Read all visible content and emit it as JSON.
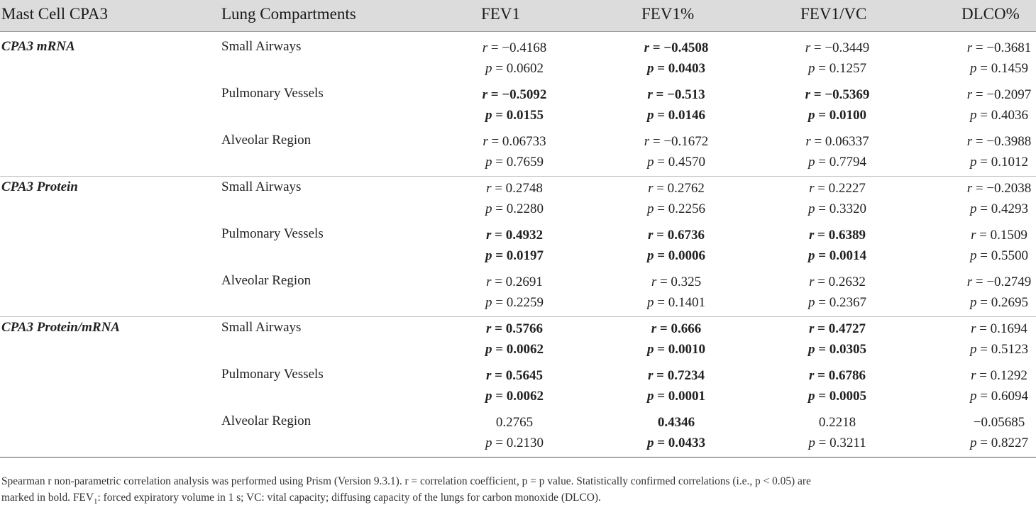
{
  "table": {
    "headers": {
      "mast_cell": "Mast Cell CPA3",
      "compartment": "Lung Compartments",
      "fev1": "FEV1",
      "fev1_pct": "FEV1%",
      "fev1_vc": "FEV1/VC",
      "dlco_pct": "DLCO%"
    },
    "rows": [
      {
        "category": "CPA3 mRNA",
        "compartment": "Small Airways",
        "fev1": {
          "r": "r = −0.4168",
          "p": "p = 0.0602",
          "bold": false
        },
        "fev1_pct": {
          "r": "r = −0.4508",
          "p": "p = 0.0403",
          "bold": true
        },
        "fev1_vc": {
          "r": "r = −0.3449",
          "p": "p = 0.1257",
          "bold": false
        },
        "dlco_pct": {
          "r": "r = −0.3681",
          "p": "p = 0.1459",
          "bold": false
        }
      },
      {
        "category": "",
        "compartment": "Pulmonary Vessels",
        "fev1": {
          "r": "r = −0.5092",
          "p": "p = 0.0155",
          "bold": true
        },
        "fev1_pct": {
          "r": "r = −0.513",
          "p": "p = 0.0146",
          "bold": true
        },
        "fev1_vc": {
          "r": "r = −0.5369",
          "p": "p = 0.0100",
          "bold": true
        },
        "dlco_pct": {
          "r": "r = −0.2097",
          "p": "p = 0.4036",
          "bold": false
        }
      },
      {
        "category": "",
        "compartment": "Alveolar Region",
        "fev1": {
          "r": "r = 0.06733",
          "p": "p = 0.7659",
          "bold": false
        },
        "fev1_pct": {
          "r": "r = −0.1672",
          "p": "p = 0.4570",
          "bold": false
        },
        "fev1_vc": {
          "r": "r = 0.06337",
          "p": "p = 0.7794",
          "bold": false
        },
        "dlco_pct": {
          "r": "r = −0.3988",
          "p": "p = 0.1012",
          "bold": false
        }
      },
      {
        "category": "CPA3 Protein",
        "compartment": "Small Airways",
        "fev1": {
          "r": "r = 0.2748",
          "p": "p = 0.2280",
          "bold": false
        },
        "fev1_pct": {
          "r": "r = 0.2762",
          "p": "p = 0.2256",
          "bold": false
        },
        "fev1_vc": {
          "r": "r = 0.2227",
          "p": "p = 0.3320",
          "bold": false
        },
        "dlco_pct": {
          "r": "r = −0.2038",
          "p": "p = 0.4293",
          "bold": false
        }
      },
      {
        "category": "",
        "compartment": "Pulmonary Vessels",
        "fev1": {
          "r": "r = 0.4932",
          "p": "p = 0.0197",
          "bold": true
        },
        "fev1_pct": {
          "r": "r = 0.6736",
          "p": "p = 0.0006",
          "bold": true
        },
        "fev1_vc": {
          "r": "r = 0.6389",
          "p": "p = 0.0014",
          "bold": true
        },
        "dlco_pct": {
          "r": "r = 0.1509",
          "p": "p = 0.5500",
          "bold": false
        }
      },
      {
        "category": "",
        "compartment": "Alveolar Region",
        "fev1": {
          "r": "r = 0.2691",
          "p": "p = 0.2259",
          "bold": false
        },
        "fev1_pct": {
          "r": "r = 0.325",
          "p": "p = 0.1401",
          "bold": false
        },
        "fev1_vc": {
          "r": "r = 0.2632",
          "p": "p = 0.2367",
          "bold": false
        },
        "dlco_pct": {
          "r": "r = −0.2749",
          "p": "p = 0.2695",
          "bold": false
        }
      },
      {
        "category": "CPA3 Protein/mRNA",
        "compartment": "Small Airways",
        "fev1": {
          "r": "r = 0.5766",
          "p": "p = 0.0062",
          "bold": true
        },
        "fev1_pct": {
          "r": "r = 0.666",
          "p": "p = 0.0010",
          "bold": true
        },
        "fev1_vc": {
          "r": "r = 0.4727",
          "p": "p = 0.0305",
          "bold": true
        },
        "dlco_pct": {
          "r": "r = 0.1694",
          "p": "p = 0.5123",
          "bold": false
        }
      },
      {
        "category": "",
        "compartment": "Pulmonary Vessels",
        "fev1": {
          "r": "r = 0.5645",
          "p": "p = 0.0062",
          "bold": true
        },
        "fev1_pct": {
          "r": "r = 0.7234",
          "p": "p = 0.0001",
          "bold": true
        },
        "fev1_vc": {
          "r": "r = 0.6786",
          "p": "p = 0.0005",
          "bold": true
        },
        "dlco_pct": {
          "r": "r = 0.1292",
          "p": "p = 0.6094",
          "bold": false
        }
      },
      {
        "category": "",
        "compartment": "Alveolar Region",
        "fev1": {
          "r": "0.2765",
          "p": "p = 0.2130",
          "bold": false
        },
        "fev1_pct": {
          "r": "0.4346",
          "p": "p = 0.0433",
          "bold": true
        },
        "fev1_vc": {
          "r": "0.2218",
          "p": "p = 0.3211",
          "bold": false
        },
        "dlco_pct": {
          "r": "−0.05685",
          "p": "p = 0.8227",
          "bold": false
        }
      }
    ]
  },
  "footnote": {
    "line1": "Spearman r non-parametric correlation analysis was performed using Prism (Version 9.3.1). r = correlation coefficient, p = p value. Statistically confirmed correlations (i.e., p < 0.05) are",
    "line2_start": "marked in bold. FEV",
    "line2_sub": "1",
    "line2_end": ": forced expiratory volume in 1 s; VC: vital capacity; diffusing capacity of the lungs for carbon monoxide (DLCO)."
  }
}
